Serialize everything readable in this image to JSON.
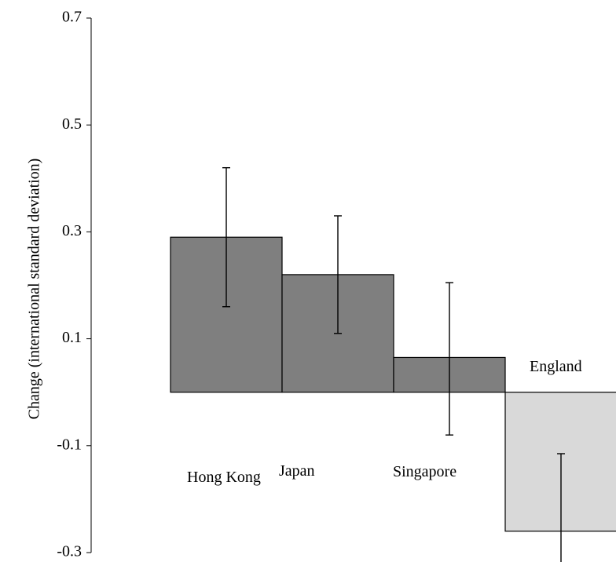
{
  "chart_data": {
    "type": "bar",
    "title": "",
    "ylabel": "Change (international standard deviation)",
    "xlabel": "",
    "ylim": [
      -0.3,
      0.7
    ],
    "yticks": [
      "0.7",
      "0.5",
      "0.3",
      "0.1",
      "-0.1",
      "-0.3"
    ],
    "grid": false,
    "categories": [
      "Hong Kong",
      "Japan",
      "Singapore",
      "England"
    ],
    "values": [
      0.29,
      0.22,
      0.065,
      -0.26
    ],
    "error_low": [
      0.16,
      0.11,
      -0.08,
      -0.36
    ],
    "error_high": [
      0.42,
      0.33,
      0.205,
      -0.115
    ],
    "colors": [
      "#7f7f7f",
      "#7f7f7f",
      "#7f7f7f",
      "#d9d9d9"
    ]
  }
}
